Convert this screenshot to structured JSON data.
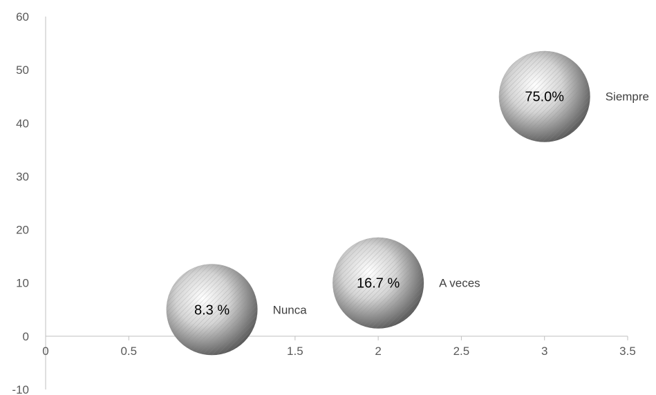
{
  "chart_data": {
    "type": "scatter",
    "title": "",
    "xlabel": "",
    "ylabel": "",
    "xlim": [
      0,
      3.5
    ],
    "ylim": [
      -10,
      60
    ],
    "x_ticks": [
      "0",
      "0.5",
      "1",
      "1.5",
      "2",
      "2.5",
      "3",
      "3.5"
    ],
    "y_ticks": [
      "-10",
      "0",
      "10",
      "20",
      "30",
      "40",
      "50",
      "60"
    ],
    "grid": false,
    "legend": "none",
    "points": [
      {
        "x": 1,
        "y": 5,
        "label": "8.3 %",
        "category": "Nunca"
      },
      {
        "x": 2,
        "y": 10,
        "label": "16.7 %",
        "category": "A veces"
      },
      {
        "x": 3,
        "y": 45,
        "label": "75.0%",
        "category": "Siempre"
      }
    ],
    "colors": {
      "axis": "#bfbfbf",
      "bubble_light": "#ffffff",
      "bubble_dark": "#5a5a5a",
      "hatch": "#8c8c8c"
    }
  }
}
